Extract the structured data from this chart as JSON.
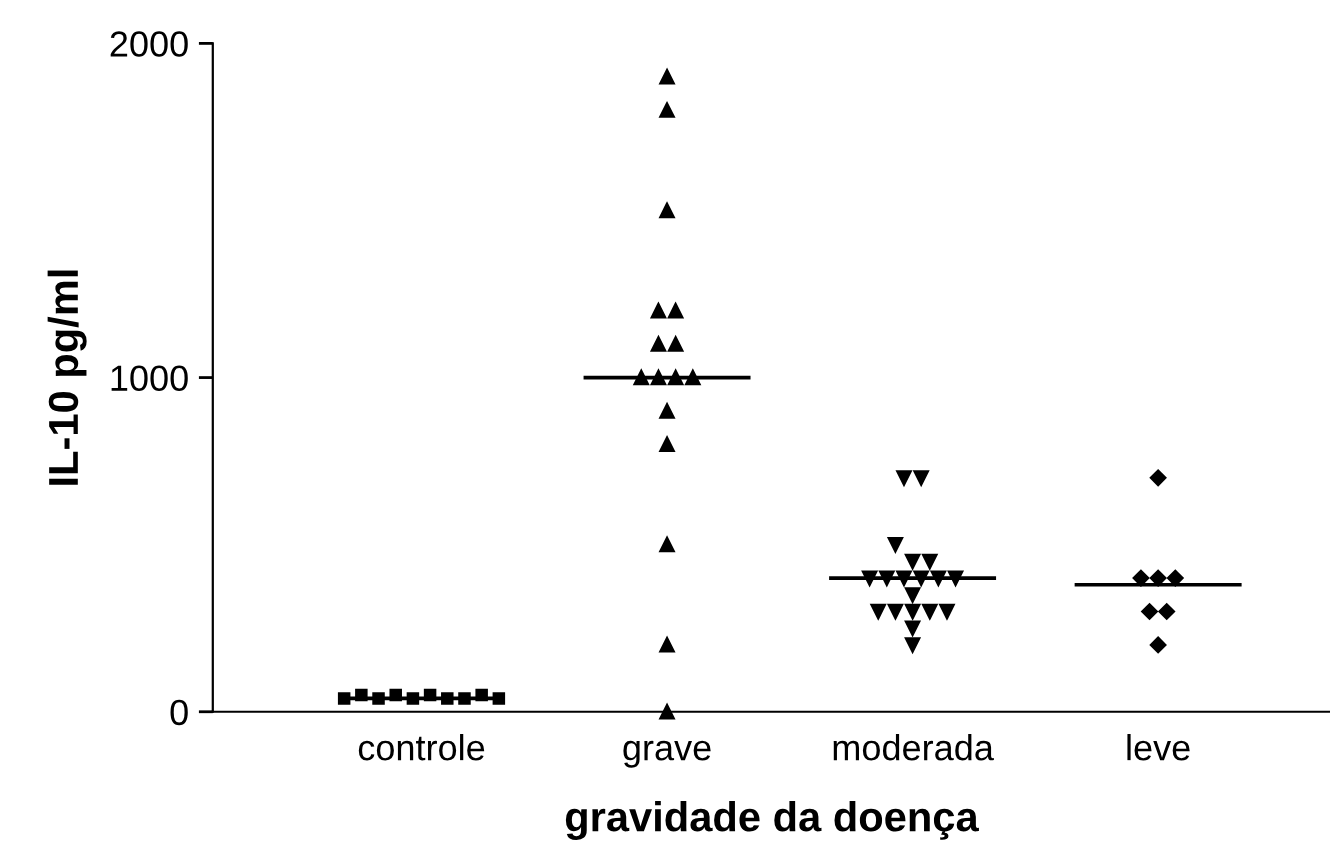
{
  "chart_data": {
    "type": "scatter",
    "xlabel": "gravidade da doença",
    "ylabel": "IL-10 pg/ml",
    "categories": [
      "controle",
      "grave",
      "moderada",
      "leve"
    ],
    "ylim": [
      0,
      2000
    ],
    "yticks": [
      0,
      1000,
      2000
    ],
    "grid": false,
    "series": [
      {
        "color": "#000000",
        "marker": "square",
        "x": [
          "controle",
          "controle",
          "controle",
          "controle",
          "controle",
          "controle",
          "controle",
          "controle",
          "controle",
          "controle"
        ],
        "values": [
          40,
          50,
          40,
          50,
          40,
          50,
          40,
          40,
          50,
          40
        ]
      },
      {
        "color": "#000000",
        "marker": "triangle",
        "x": [
          "grave",
          "grave",
          "grave",
          "grave",
          "grave",
          "grave",
          "grave",
          "grave",
          "grave",
          "grave",
          "grave",
          "grave",
          "grave",
          "grave",
          "grave",
          "grave"
        ],
        "values": [
          1900,
          1800,
          1500,
          1200,
          1200,
          1100,
          1100,
          1000,
          1000,
          1000,
          1000,
          900,
          800,
          500,
          200,
          0
        ]
      },
      {
        "color": "#000000",
        "marker": "triangle_down",
        "x": [
          "moderada",
          "moderada",
          "moderada",
          "moderada",
          "moderada",
          "moderada",
          "moderada",
          "moderada",
          "moderada",
          "moderada",
          "moderada",
          "moderada",
          "moderada",
          "moderada",
          "moderada",
          "moderada",
          "moderada",
          "moderada",
          "moderada"
        ],
        "values": [
          700,
          700,
          500,
          450,
          450,
          400,
          400,
          400,
          400,
          400,
          400,
          350,
          300,
          300,
          300,
          300,
          300,
          250,
          200
        ]
      },
      {
        "color": "#000000",
        "marker": "diamond",
        "x": [
          "leve",
          "leve",
          "leve",
          "leve",
          "leve",
          "leve",
          "leve"
        ],
        "values": [
          700,
          400,
          400,
          400,
          300,
          300,
          200
        ]
      }
    ],
    "ref_lines": [
      {
        "axis": "y",
        "value": 40,
        "color": "#000000"
      },
      {
        "axis": "y",
        "value": 1000,
        "color": "#000000"
      },
      {
        "axis": "y",
        "value": 400,
        "color": "#000000"
      },
      {
        "axis": "y",
        "value": 380,
        "color": "#000000"
      }
    ]
  }
}
